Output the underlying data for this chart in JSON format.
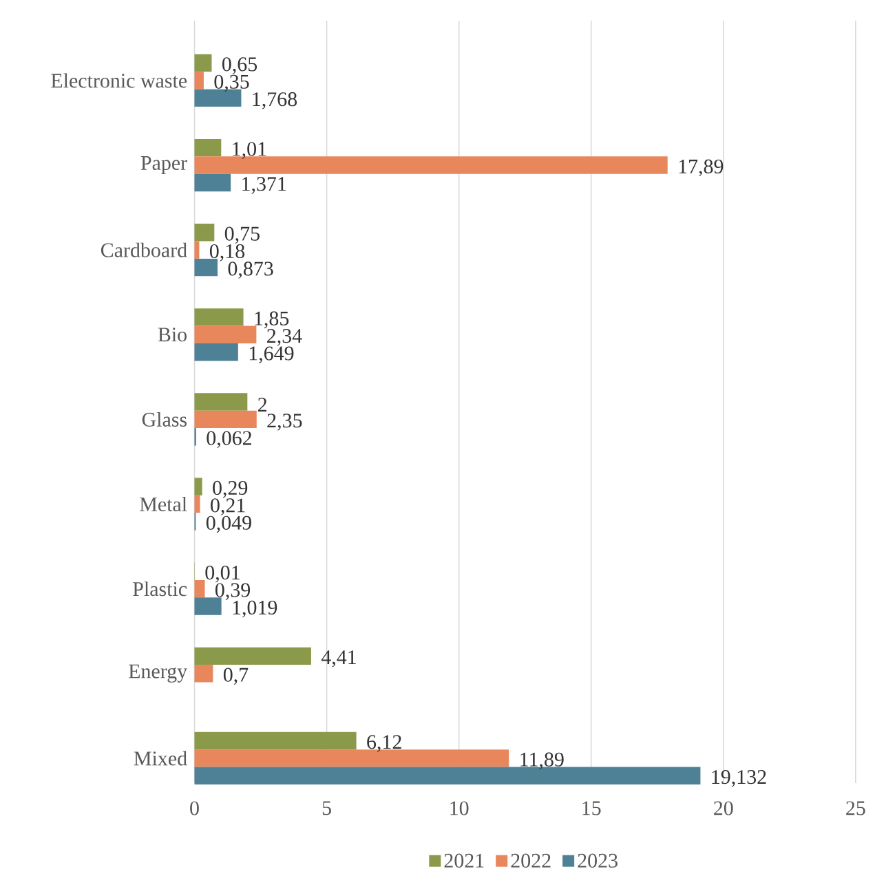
{
  "chart_data": {
    "type": "bar",
    "orientation": "horizontal",
    "categories": [
      "Electronic waste",
      "Paper",
      "Cardboard",
      "Bio",
      "Glass",
      "Metal",
      "Plastic",
      "Energy",
      "Mixed"
    ],
    "series": [
      {
        "name": "2021",
        "color": "#8a9a4a",
        "values": [
          0.65,
          1.01,
          0.75,
          1.85,
          2,
          0.29,
          0.01,
          4.41,
          6.12
        ],
        "value_labels": [
          "0,65",
          "1,01",
          "0,75",
          "1,85",
          "2",
          "0,29",
          "0,01",
          "4,41",
          "6,12"
        ]
      },
      {
        "name": "2022",
        "color": "#e8875c",
        "values": [
          0.35,
          17.89,
          0.18,
          2.34,
          2.35,
          0.21,
          0.39,
          0.7,
          11.89
        ],
        "value_labels": [
          "0,35",
          "17,89",
          "0,18",
          "2,34",
          "2,35",
          "0,21",
          "0,39",
          "0,7",
          "11,89"
        ]
      },
      {
        "name": "2023",
        "color": "#4f8196",
        "values": [
          1.768,
          1.371,
          0.873,
          1.649,
          0.062,
          0.049,
          1.019,
          null,
          19.132
        ],
        "value_labels": [
          "1,768",
          "1,371",
          "0,873",
          "1,649",
          "0,062",
          "0,049",
          "1,019",
          null,
          "19,132"
        ]
      }
    ],
    "xlim": [
      0,
      25
    ],
    "xticks": [
      0,
      5,
      10,
      15,
      20,
      25
    ],
    "grid": "x",
    "legend": "bottom"
  }
}
